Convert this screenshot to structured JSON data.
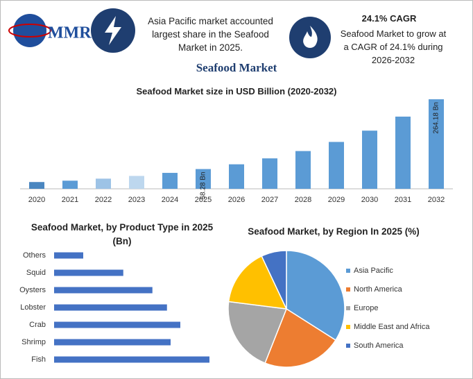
{
  "header": {
    "logo": "MMR",
    "share_note": "Asia Pacific market accounted largest share in the Seafood Market in 2025.",
    "cagr_title": "24.1% CAGR",
    "cagr_note": "Seafood Market to grow at a CAGR of 24.1% during 2026-2032",
    "title": "Seafood Market"
  },
  "chart_data": [
    {
      "type": "bar",
      "title": "Seafood Market size in USD Billion (2020-2032)",
      "categories": [
        "2020",
        "2021",
        "2022",
        "2023",
        "2024",
        "2025",
        "2026",
        "2027",
        "2028",
        "2029",
        "2030",
        "2031",
        "2032"
      ],
      "values": [
        20,
        24,
        30,
        38,
        47,
        58.28,
        72.3,
        89.8,
        111.4,
        138.3,
        171.6,
        213,
        264.18
      ],
      "value_labels": [
        null,
        null,
        null,
        null,
        null,
        "58.28 Bn",
        null,
        null,
        null,
        null,
        null,
        null,
        "264.18 Bn"
      ],
      "colors": [
        "#4a86c0",
        "#5b9bd5",
        "#9dc3e6",
        "#bdd7ee",
        "#5b9bd5",
        "#5b9bd5",
        "#5b9bd5",
        "#5b9bd5",
        "#5b9bd5",
        "#5b9bd5",
        "#5b9bd5",
        "#5b9bd5",
        "#5b9bd5"
      ]
    },
    {
      "type": "hbar",
      "title": "Seafood Market, by Product Type in 2025 (Bn)",
      "categories": [
        "Others",
        "Squid",
        "Oysters",
        "Lobster",
        "Crab",
        "Shrimp",
        "Fish"
      ],
      "values": [
        2.4,
        5.7,
        8.1,
        9.3,
        10.4,
        9.6,
        12.8
      ],
      "color": "#4472c4"
    },
    {
      "type": "pie",
      "title": "Seafood Market, by Region In 2025 (%)",
      "categories": [
        "Asia Pacific",
        "North America",
        "Europe",
        "Middle East and Africa",
        "South America"
      ],
      "values": [
        34,
        22,
        21,
        16,
        7
      ],
      "colors": [
        "#5b9bd5",
        "#ed7d31",
        "#a5a5a5",
        "#ffc000",
        "#4472c4"
      ],
      "legend": "right"
    }
  ]
}
